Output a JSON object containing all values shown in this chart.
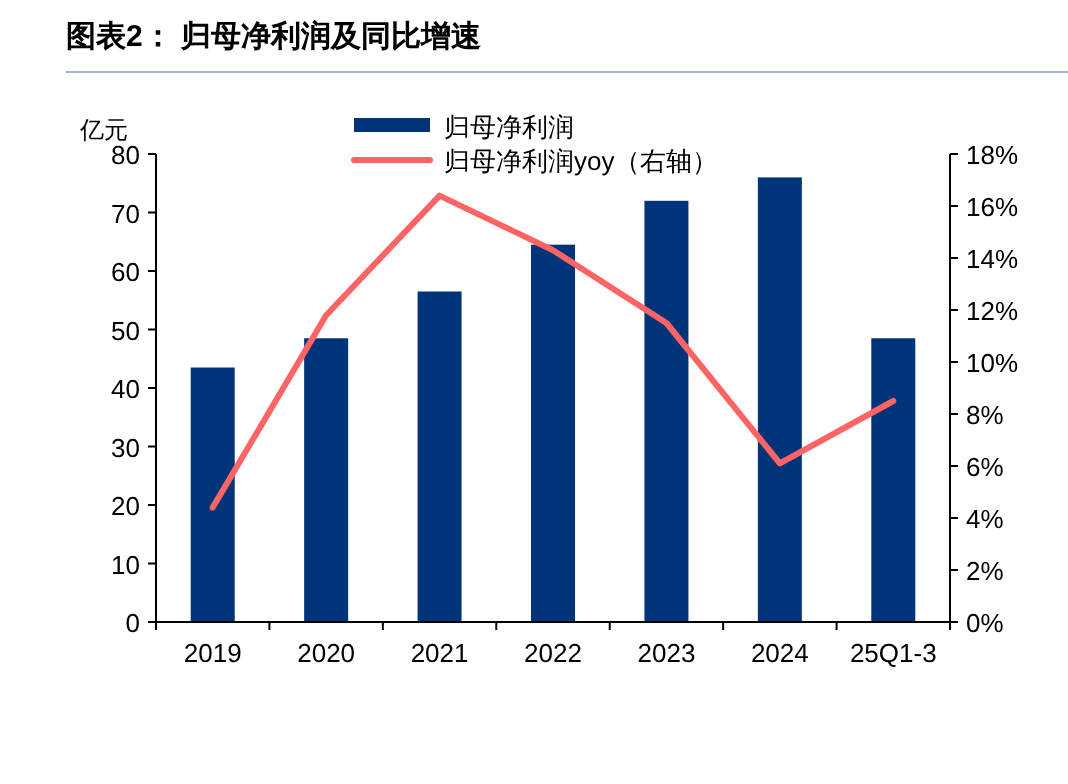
{
  "chart_data": {
    "type": "bar",
    "title": "图表2：  归母净利润及同比增速",
    "ylabel": "亿元",
    "categories": [
      "2019",
      "2020",
      "2021",
      "2022",
      "2023",
      "2024",
      "25Q1-3"
    ],
    "series": [
      {
        "name": "归母净利润",
        "color": "#003478",
        "values": [
          43.5,
          48.5,
          56.5,
          64.5,
          72,
          76,
          48.5
        ]
      },
      {
        "name": "归母净利润yoy（右轴）",
        "type": "line",
        "axis": "y2",
        "color": "#ff6464",
        "values": [
          4.4,
          11.8,
          16.4,
          14.3,
          11.5,
          6.1,
          8.5
        ]
      }
    ],
    "ylim": [
      0,
      80
    ],
    "yticks": [
      0,
      10,
      20,
      30,
      40,
      50,
      60,
      70,
      80
    ],
    "y2lim": [
      0,
      18
    ],
    "y2ticks": [
      {
        "value": 0,
        "label": "0%"
      },
      {
        "value": 2,
        "label": "2%"
      },
      {
        "value": 4,
        "label": "4%"
      },
      {
        "value": 6,
        "label": "6%"
      },
      {
        "value": 8,
        "label": "8%"
      },
      {
        "value": 10,
        "label": "10%"
      },
      {
        "value": 12,
        "label": "12%"
      },
      {
        "value": 14,
        "label": "14%"
      },
      {
        "value": 16,
        "label": "16%"
      },
      {
        "value": 18,
        "label": "18%"
      }
    ],
    "legend": "top",
    "grid": false
  }
}
